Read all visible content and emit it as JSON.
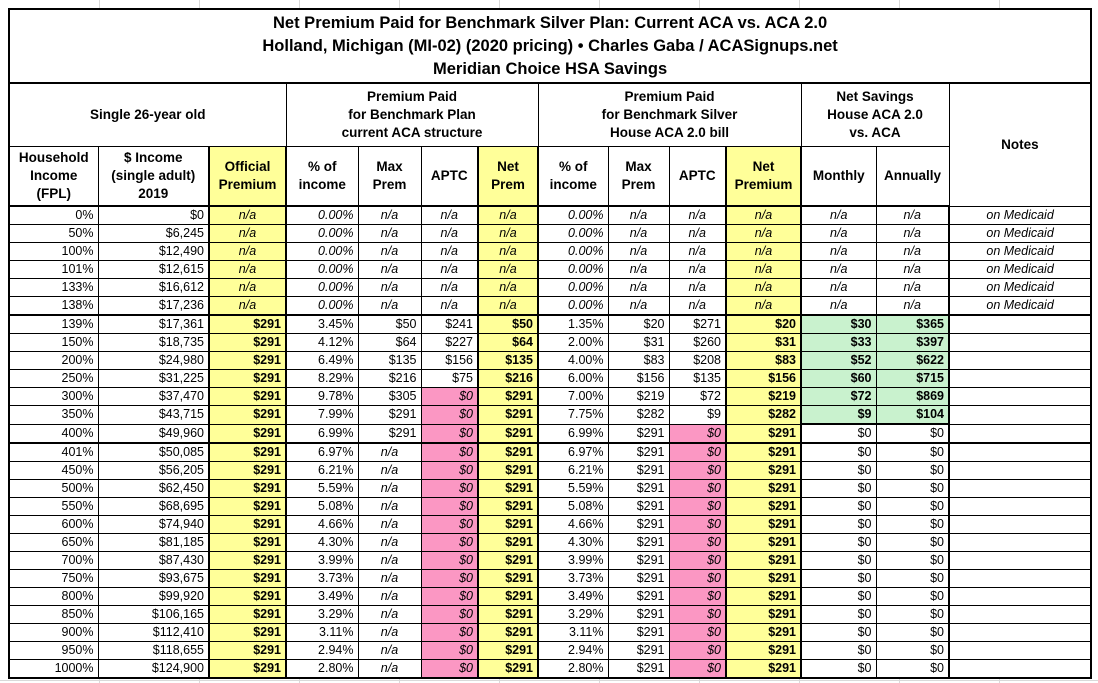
{
  "title": {
    "line1": "Net Premium Paid for Benchmark Silver Plan: Current ACA vs. ACA 2.0",
    "line2": "Holland, Michigan (MI-02) (2020 pricing) • Charles Gaba / ACASignups.net",
    "line3": "Meridian Choice HSA Savings"
  },
  "groups": {
    "subject": "Single 26-year old",
    "aca": "Premium Paid\nfor Benchmark Plan\ncurrent ACA structure",
    "aca2": "Premium Paid\nfor Benchmark Silver\nHouse ACA 2.0 bill",
    "savings": "Net Savings\nHouse ACA 2.0\nvs. ACA",
    "notes": "Notes"
  },
  "columns": {
    "fpl": "Household\nIncome\n(FPL)",
    "income": "$ Income\n(single adult)\n2019",
    "official": "Official\nPremium",
    "pct": "% of\nincome",
    "max": "Max\nPrem",
    "aptc": "APTC",
    "net1": "Net\nPrem",
    "net2": "Net\nPremium",
    "monthly": "Monthly",
    "annually": "Annually"
  },
  "colors": {
    "yellow": "#FFFF99",
    "pink": "#FB97C3",
    "green": "#C9F2CE",
    "peach": "#FAC090",
    "border": "#000000",
    "gridline": "#D9D9D9"
  },
  "rows": [
    [
      "0%",
      "$0",
      "n/a",
      "0.00%",
      "n/a",
      "n/a",
      "n/a",
      "0.00%",
      "n/a",
      "n/a",
      "n/a",
      "n/a",
      "n/a",
      "on Medicaid"
    ],
    [
      "50%",
      "$6,245",
      "n/a",
      "0.00%",
      "n/a",
      "n/a",
      "n/a",
      "0.00%",
      "n/a",
      "n/a",
      "n/a",
      "n/a",
      "n/a",
      "on Medicaid"
    ],
    [
      "100%",
      "$12,490",
      "n/a",
      "0.00%",
      "n/a",
      "n/a",
      "n/a",
      "0.00%",
      "n/a",
      "n/a",
      "n/a",
      "n/a",
      "n/a",
      "on Medicaid"
    ],
    [
      "101%",
      "$12,615",
      "n/a",
      "0.00%",
      "n/a",
      "n/a",
      "n/a",
      "0.00%",
      "n/a",
      "n/a",
      "n/a",
      "n/a",
      "n/a",
      "on Medicaid"
    ],
    [
      "133%",
      "$16,612",
      "n/a",
      "0.00%",
      "n/a",
      "n/a",
      "n/a",
      "0.00%",
      "n/a",
      "n/a",
      "n/a",
      "n/a",
      "n/a",
      "on Medicaid"
    ],
    [
      "138%",
      "$17,236",
      "n/a",
      "0.00%",
      "n/a",
      "n/a",
      "n/a",
      "0.00%",
      "n/a",
      "n/a",
      "n/a",
      "n/a",
      "n/a",
      "on Medicaid"
    ],
    [
      "139%",
      "$17,361",
      "$291",
      "3.45%",
      "$50",
      "$241",
      "$50",
      "1.35%",
      "$20",
      "$271",
      "$20",
      "$30",
      "$365",
      ""
    ],
    [
      "150%",
      "$18,735",
      "$291",
      "4.12%",
      "$64",
      "$227",
      "$64",
      "2.00%",
      "$31",
      "$260",
      "$31",
      "$33",
      "$397",
      ""
    ],
    [
      "200%",
      "$24,980",
      "$291",
      "6.49%",
      "$135",
      "$156",
      "$135",
      "4.00%",
      "$83",
      "$208",
      "$83",
      "$52",
      "$622",
      ""
    ],
    [
      "250%",
      "$31,225",
      "$291",
      "8.29%",
      "$216",
      "$75",
      "$216",
      "6.00%",
      "$156",
      "$135",
      "$156",
      "$60",
      "$715",
      ""
    ],
    [
      "300%",
      "$37,470",
      "$291",
      "9.78%",
      "$305",
      "$0",
      "$291",
      "7.00%",
      "$219",
      "$72",
      "$219",
      "$72",
      "$869",
      ""
    ],
    [
      "350%",
      "$43,715",
      "$291",
      "7.99%",
      "$291",
      "$0",
      "$291",
      "7.75%",
      "$282",
      "$9",
      "$282",
      "$9",
      "$104",
      ""
    ],
    [
      "400%",
      "$49,960",
      "$291",
      "6.99%",
      "$291",
      "$0",
      "$291",
      "6.99%",
      "$291",
      "$0",
      "$291",
      "$0",
      "$0",
      ""
    ],
    [
      "401%",
      "$50,085",
      "$291",
      "6.97%",
      "n/a",
      "$0",
      "$291",
      "6.97%",
      "$291",
      "$0",
      "$291",
      "$0",
      "$0",
      ""
    ],
    [
      "450%",
      "$56,205",
      "$291",
      "6.21%",
      "n/a",
      "$0",
      "$291",
      "6.21%",
      "$291",
      "$0",
      "$291",
      "$0",
      "$0",
      ""
    ],
    [
      "500%",
      "$62,450",
      "$291",
      "5.59%",
      "n/a",
      "$0",
      "$291",
      "5.59%",
      "$291",
      "$0",
      "$291",
      "$0",
      "$0",
      ""
    ],
    [
      "550%",
      "$68,695",
      "$291",
      "5.08%",
      "n/a",
      "$0",
      "$291",
      "5.08%",
      "$291",
      "$0",
      "$291",
      "$0",
      "$0",
      ""
    ],
    [
      "600%",
      "$74,940",
      "$291",
      "4.66%",
      "n/a",
      "$0",
      "$291",
      "4.66%",
      "$291",
      "$0",
      "$291",
      "$0",
      "$0",
      ""
    ],
    [
      "650%",
      "$81,185",
      "$291",
      "4.30%",
      "n/a",
      "$0",
      "$291",
      "4.30%",
      "$291",
      "$0",
      "$291",
      "$0",
      "$0",
      ""
    ],
    [
      "700%",
      "$87,430",
      "$291",
      "3.99%",
      "n/a",
      "$0",
      "$291",
      "3.99%",
      "$291",
      "$0",
      "$291",
      "$0",
      "$0",
      ""
    ],
    [
      "750%",
      "$93,675",
      "$291",
      "3.73%",
      "n/a",
      "$0",
      "$291",
      "3.73%",
      "$291",
      "$0",
      "$291",
      "$0",
      "$0",
      ""
    ],
    [
      "800%",
      "$99,920",
      "$291",
      "3.49%",
      "n/a",
      "$0",
      "$291",
      "3.49%",
      "$291",
      "$0",
      "$291",
      "$0",
      "$0",
      ""
    ],
    [
      "850%",
      "$106,165",
      "$291",
      "3.29%",
      "n/a",
      "$0",
      "$291",
      "3.29%",
      "$291",
      "$0",
      "$291",
      "$0",
      "$0",
      ""
    ],
    [
      "900%",
      "$112,410",
      "$291",
      "3.11%",
      "n/a",
      "$0",
      "$291",
      "3.11%",
      "$291",
      "$0",
      "$291",
      "$0",
      "$0",
      ""
    ],
    [
      "950%",
      "$118,655",
      "$291",
      "2.94%",
      "n/a",
      "$0",
      "$291",
      "2.94%",
      "$291",
      "$0",
      "$291",
      "$0",
      "$0",
      ""
    ],
    [
      "1000%",
      "$124,900",
      "$291",
      "2.80%",
      "n/a",
      "$0",
      "$291",
      "2.80%",
      "$291",
      "$0",
      "$291",
      "$0",
      "$0",
      ""
    ]
  ]
}
